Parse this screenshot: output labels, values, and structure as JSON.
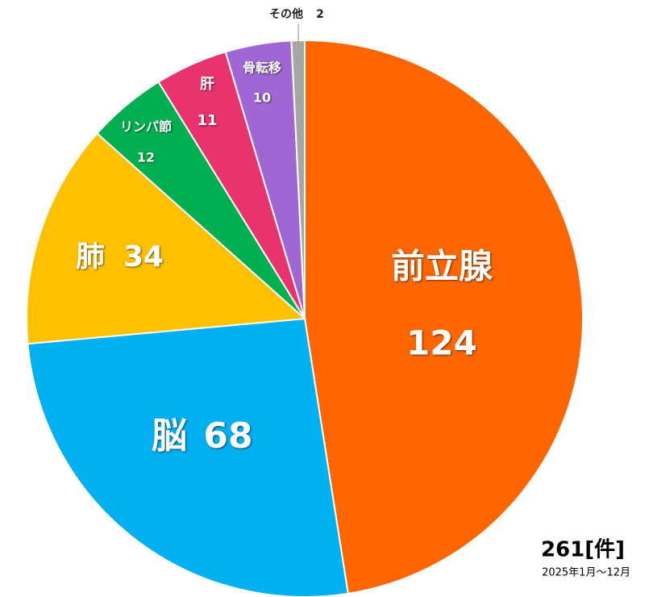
{
  "chart_data": {
    "type": "pie",
    "categories": [
      "前立腺",
      "脳",
      "肺",
      "リンパ節",
      "肝",
      "骨転移",
      "その他"
    ],
    "values": [
      124,
      68,
      34,
      12,
      11,
      10,
      2
    ],
    "colors": [
      "#ff6600",
      "#00b0f0",
      "#ffc000",
      "#00b050",
      "#e8336e",
      "#a066d3",
      "#a6a6a6"
    ],
    "total_label": "261[件]",
    "subtitle": "2025年1月～12月"
  }
}
